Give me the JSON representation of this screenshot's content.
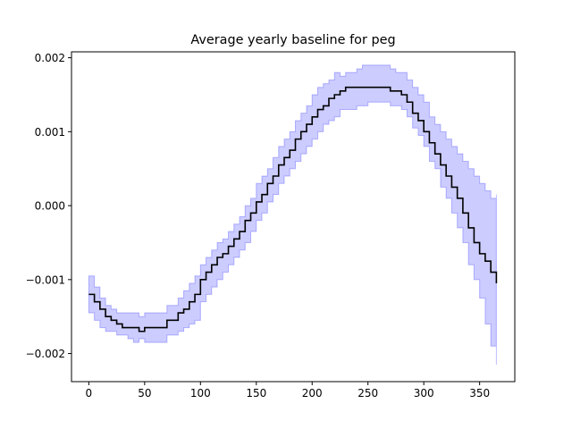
{
  "chart_data": {
    "type": "line",
    "title": "Average yearly baseline for peg",
    "xlabel": "",
    "ylabel": "",
    "xlim": [
      -15.5,
      381.5
    ],
    "ylim": [
      -0.00238,
      0.00208
    ],
    "x_ticks": [
      0,
      50,
      100,
      150,
      200,
      250,
      300,
      350
    ],
    "x_tick_labels": [
      "0",
      "50",
      "100",
      "150",
      "200",
      "250",
      "300",
      "350"
    ],
    "y_ticks": [
      -0.002,
      -0.001,
      0.0,
      0.001,
      0.002
    ],
    "y_tick_labels": [
      "−0.002",
      "−0.001",
      "0.000",
      "0.001",
      "0.002"
    ],
    "grid": false,
    "legend": "none",
    "series": [
      {
        "role": "mean",
        "color": "#000000",
        "step": true,
        "x": [
          0,
          5,
          10,
          15,
          20,
          25,
          30,
          35,
          40,
          45,
          50,
          60,
          70,
          80,
          85,
          90,
          95,
          100,
          105,
          110,
          115,
          120,
          125,
          130,
          135,
          140,
          145,
          150,
          155,
          160,
          165,
          170,
          175,
          180,
          185,
          190,
          195,
          200,
          205,
          210,
          215,
          220,
          225,
          230,
          235,
          240,
          245,
          250,
          255,
          260,
          265,
          270,
          275,
          280,
          285,
          290,
          295,
          300,
          305,
          310,
          315,
          320,
          325,
          330,
          335,
          340,
          345,
          350,
          355,
          360,
          365
        ],
        "y": [
          -0.0012,
          -0.0013,
          -0.0014,
          -0.0015,
          -0.00155,
          -0.0016,
          -0.00165,
          -0.00165,
          -0.00165,
          -0.0017,
          -0.00165,
          -0.00165,
          -0.00155,
          -0.00145,
          -0.0014,
          -0.0013,
          -0.0012,
          -0.001,
          -0.0009,
          -0.0008,
          -0.0007,
          -0.00065,
          -0.00055,
          -0.00045,
          -0.00035,
          -0.0002,
          -0.0001,
          5e-05,
          0.00015,
          0.0003,
          0.0004,
          0.00055,
          0.00065,
          0.00075,
          0.0009,
          0.001,
          0.0011,
          0.0012,
          0.0013,
          0.00135,
          0.00145,
          0.0015,
          0.00155,
          0.0016,
          0.0016,
          0.0016,
          0.0016,
          0.0016,
          0.0016,
          0.0016,
          0.0016,
          0.00155,
          0.00155,
          0.0015,
          0.0014,
          0.00125,
          0.00115,
          0.001,
          0.00085,
          0.0007,
          0.00055,
          0.0004,
          0.00025,
          0.0001,
          -0.0001,
          -0.0003,
          -0.0005,
          -0.00065,
          -0.00075,
          -0.0009,
          -0.00105
        ]
      },
      {
        "role": "band",
        "color": "#0000ff",
        "opacity": 0.2,
        "x": [
          0,
          5,
          10,
          15,
          20,
          25,
          30,
          35,
          40,
          45,
          50,
          60,
          70,
          80,
          85,
          90,
          95,
          100,
          105,
          110,
          115,
          120,
          125,
          130,
          135,
          140,
          145,
          150,
          155,
          160,
          165,
          170,
          175,
          180,
          185,
          190,
          195,
          200,
          205,
          210,
          215,
          220,
          225,
          230,
          235,
          240,
          245,
          250,
          255,
          260,
          265,
          270,
          275,
          280,
          285,
          290,
          295,
          300,
          305,
          310,
          315,
          320,
          325,
          330,
          335,
          340,
          345,
          350,
          355,
          360,
          365
        ],
        "upper": [
          -0.00095,
          -0.0011,
          -0.00125,
          -0.00135,
          -0.0014,
          -0.00145,
          -0.00145,
          -0.00145,
          -0.00145,
          -0.0015,
          -0.00145,
          -0.00145,
          -0.00135,
          -0.00125,
          -0.00115,
          -0.00105,
          -0.00095,
          -0.0008,
          -0.0007,
          -0.0006,
          -0.0005,
          -0.00045,
          -0.00035,
          -0.00025,
          -0.00015,
          0.0,
          0.0001,
          0.0003,
          0.0004,
          0.0005,
          0.00065,
          0.0008,
          0.0009,
          0.001,
          0.00115,
          0.00125,
          0.00135,
          0.0015,
          0.0016,
          0.00165,
          0.0017,
          0.0018,
          0.00175,
          0.0018,
          0.0018,
          0.00185,
          0.0019,
          0.0019,
          0.0019,
          0.0019,
          0.0019,
          0.00185,
          0.0018,
          0.0018,
          0.0017,
          0.0016,
          0.0015,
          0.0014,
          0.0012,
          0.0011,
          0.001,
          0.0009,
          0.0008,
          0.0007,
          0.0006,
          0.0005,
          0.0004,
          0.0003,
          0.0002,
          0.0001,
          0.00015
        ],
        "lower": [
          -0.00145,
          -0.00155,
          -0.00165,
          -0.0017,
          -0.0017,
          -0.00175,
          -0.00175,
          -0.0018,
          -0.00185,
          -0.0018,
          -0.00185,
          -0.00185,
          -0.00175,
          -0.0017,
          -0.00165,
          -0.0016,
          -0.00155,
          -0.0013,
          -0.0012,
          -0.0011,
          -0.001,
          -0.0009,
          -0.0008,
          -0.0007,
          -0.0006,
          -0.0005,
          -0.00035,
          -0.0002,
          -0.0001,
          5e-05,
          0.00015,
          0.0003,
          0.0004,
          0.0005,
          0.0006,
          0.0007,
          0.0008,
          0.0009,
          0.001,
          0.0011,
          0.00115,
          0.0012,
          0.0013,
          0.0013,
          0.0013,
          0.00135,
          0.00135,
          0.0014,
          0.0014,
          0.0014,
          0.0014,
          0.00135,
          0.00135,
          0.0013,
          0.0012,
          0.00105,
          0.00095,
          0.0008,
          0.0006,
          0.0005,
          0.00025,
          0.0001,
          -0.0001,
          -0.0003,
          -0.0005,
          -0.0008,
          -0.001,
          -0.00125,
          -0.0016,
          -0.0019,
          -0.00215
        ]
      }
    ]
  }
}
